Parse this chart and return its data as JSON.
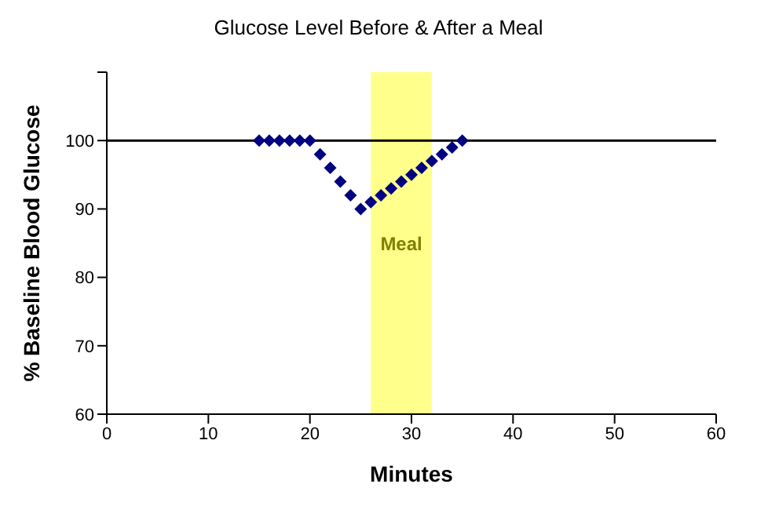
{
  "chart_data": {
    "type": "scatter",
    "title": "Glucose Level Before & After a Meal",
    "xlabel": "Minutes",
    "ylabel": "% Baseline Blood Glucose",
    "x": [
      15,
      16,
      17,
      18,
      19,
      20,
      21,
      22,
      23,
      24,
      25,
      26,
      27,
      28,
      29,
      30,
      31,
      32,
      33,
      34,
      35
    ],
    "series": [
      {
        "color": "#000080",
        "values": [
          100,
          100,
          100,
          100,
          100,
          100,
          98,
          96,
          94,
          92,
          90,
          91,
          92,
          93,
          94,
          95,
          96,
          97,
          98,
          99,
          100
        ]
      }
    ],
    "xlim": [
      0,
      60
    ],
    "xticks": [
      0,
      10,
      20,
      30,
      40,
      50,
      60
    ],
    "ylim": [
      60,
      110
    ],
    "yticks": [
      60,
      70,
      80,
      90,
      100,
      {
        "value": 110,
        "label": null
      }
    ],
    "ref_lines": [
      {
        "axis": "y",
        "value": 100,
        "color": "#000000"
      }
    ],
    "bands": [
      {
        "axis": "x",
        "from": 26,
        "to": 32,
        "label": "Meal",
        "color": "#ffff40"
      }
    ],
    "marker": "diamond",
    "grid": false,
    "legend": false
  }
}
